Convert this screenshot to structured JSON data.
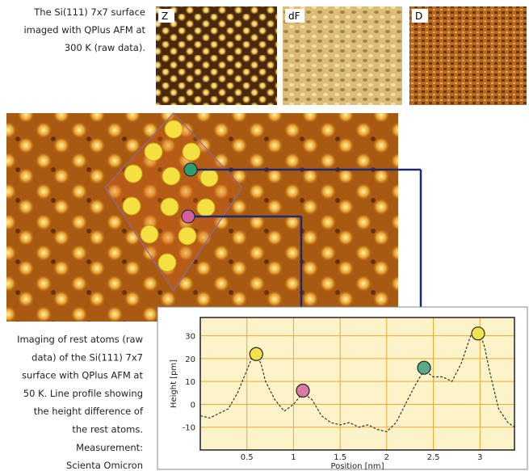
{
  "caption_top": [
    "The Si(111) 7x7 surface",
    "imaged with QPlus AFM at",
    "300 K (raw data)."
  ],
  "image_labels": [
    "Z",
    "dF",
    "D"
  ],
  "caption_bottom": [
    "Imaging of rest atoms (raw",
    "data) of the Si(111) 7x7",
    "surface with QPlus AFM at",
    "50 K. Line profile showing",
    "the height difference of",
    "the rest atoms.",
    "Measurement:",
    "Scienta Omicron"
  ],
  "chart_data": {
    "type": "line",
    "xlabel": "Position [nm]",
    "ylabel": "Height [pm]",
    "xlim": [
      0,
      3.37
    ],
    "ylim": [
      -20,
      38
    ],
    "xticks": [
      0.5,
      1,
      1.5,
      2,
      2.5,
      3
    ],
    "yticks": [
      -10,
      0,
      10,
      20,
      30
    ],
    "grid": true,
    "color": "#333333",
    "x": [
      0,
      0.1,
      0.2,
      0.3,
      0.4,
      0.5,
      0.55,
      0.6,
      0.65,
      0.7,
      0.8,
      0.9,
      1.0,
      1.1,
      1.2,
      1.3,
      1.4,
      1.5,
      1.6,
      1.7,
      1.8,
      1.9,
      2.0,
      2.1,
      2.2,
      2.3,
      2.4,
      2.5,
      2.6,
      2.7,
      2.8,
      2.9,
      2.95,
      3.0,
      3.05,
      3.1,
      3.2,
      3.3,
      3.37
    ],
    "values": [
      -5,
      -6,
      -4,
      -2,
      5,
      15,
      20,
      21,
      18,
      10,
      2,
      -3,
      0,
      5,
      2,
      -5,
      -8,
      -9,
      -8,
      -10,
      -9,
      -11,
      -12,
      -8,
      0,
      8,
      15,
      12,
      12,
      10,
      18,
      30,
      33,
      31,
      25,
      15,
      -2,
      -8,
      -10
    ],
    "markers": [
      {
        "x": 0.6,
        "y": 22,
        "color": "#f2e34a"
      },
      {
        "x": 1.1,
        "y": 6,
        "color": "#d87aa8"
      },
      {
        "x": 2.4,
        "y": 16,
        "color": "#5aa98a"
      },
      {
        "x": 2.98,
        "y": 31,
        "color": "#f2e34a"
      }
    ]
  }
}
